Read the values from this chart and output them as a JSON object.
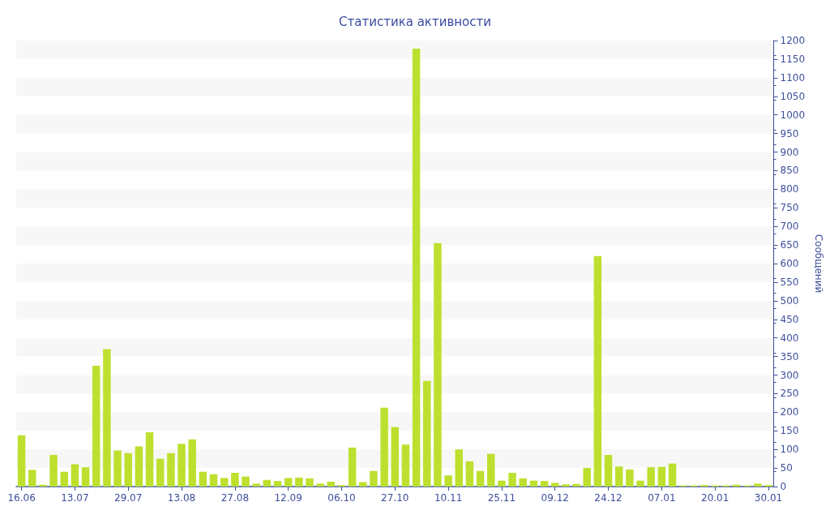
{
  "chart_data": {
    "type": "bar",
    "title": "Статистика активности",
    "ylabel": "Сообщений",
    "categories": [
      "16.06",
      null,
      null,
      null,
      null,
      "13.07",
      null,
      null,
      null,
      null,
      "29.07",
      null,
      null,
      null,
      null,
      "13.08",
      null,
      null,
      null,
      null,
      "27.08",
      null,
      null,
      null,
      null,
      "12.09",
      null,
      null,
      null,
      null,
      "06.10",
      null,
      null,
      null,
      null,
      "27.10",
      null,
      null,
      null,
      null,
      "10.11",
      null,
      null,
      null,
      null,
      "25.11",
      null,
      null,
      null,
      null,
      "09.12",
      null,
      null,
      null,
      null,
      "24.12",
      null,
      null,
      null,
      null,
      "07.01",
      null,
      null,
      null,
      null,
      "20.01",
      null,
      null,
      null,
      null,
      "30.01"
    ],
    "values": [
      138,
      45,
      5,
      85,
      40,
      60,
      52,
      325,
      370,
      97,
      90,
      108,
      146,
      75,
      90,
      115,
      127,
      40,
      33,
      23,
      37,
      27,
      8,
      18,
      15,
      23,
      24,
      22,
      8,
      13,
      4,
      105,
      12,
      42,
      212,
      160,
      113,
      1178,
      284,
      655,
      30,
      100,
      68,
      42,
      88,
      16,
      37,
      22,
      16,
      15,
      10,
      6,
      7,
      50,
      620,
      85,
      54,
      46,
      16,
      52,
      53,
      62,
      3,
      3,
      4,
      3,
      3,
      5,
      3,
      8,
      4
    ],
    "color": "#bde02f",
    "ylim": [
      0,
      1200
    ],
    "yticks": [
      0,
      50,
      100,
      150,
      200,
      250,
      300,
      350,
      400,
      450,
      500,
      550,
      600,
      650,
      700,
      750,
      800,
      850,
      900,
      950,
      1000,
      1050,
      1100,
      1150,
      1200
    ]
  }
}
